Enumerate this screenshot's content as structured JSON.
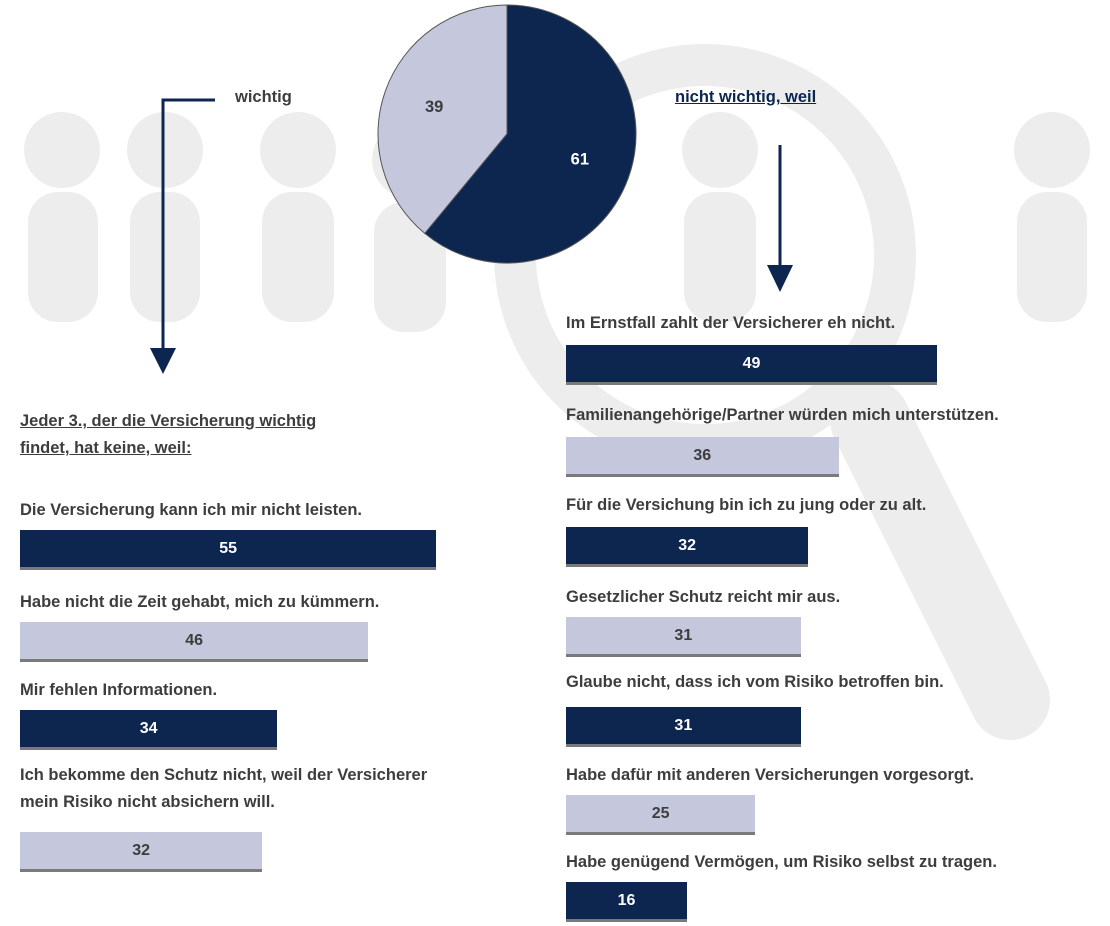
{
  "chart_data": [
    {
      "type": "pie",
      "categories": [
        "wichtig",
        "nicht wichtig, weil"
      ],
      "values": [
        39,
        61
      ],
      "colors": [
        "#c5c8dc",
        "#0c2650"
      ]
    },
    {
      "type": "bar",
      "title": "Jeder 3., der die Versicherung wichtig findet, hat keine, weil:",
      "categories": [
        "Die Versicherung kann ich mir nicht leisten.",
        "Habe nicht die Zeit gehabt, mich zu kümmern.",
        "Mir fehlen Informationen.",
        "Ich bekomme den Schutz nicht, weil der Versicherer mein Risiko nicht absichern will."
      ],
      "values": [
        55,
        46,
        34,
        32
      ],
      "colors": [
        "#0c2650",
        "#c5c8dc",
        "#0c2650",
        "#c5c8dc"
      ]
    },
    {
      "type": "bar",
      "categories": [
        "Im Ernstfall zahlt der Versicherer eh nicht.",
        "Familienangehörige/Partner würden mich unterstützen.",
        "Für die Versichung bin ich zu jung oder zu alt.",
        "Gesetzlicher Schutz reicht mir aus.",
        "Glaube nicht, dass ich vom Risiko betroffen bin.",
        "Habe dafür mit anderen Versicherungen vorgesorgt.",
        "Habe genügend Vermögen, um Risiko selbst zu tragen."
      ],
      "values": [
        49,
        36,
        32,
        31,
        31,
        25,
        16
      ],
      "colors": [
        "#0c2650",
        "#c5c8dc",
        "#0c2650",
        "#c5c8dc",
        "#0c2650",
        "#c5c8dc",
        "#0c2650"
      ]
    }
  ]
}
